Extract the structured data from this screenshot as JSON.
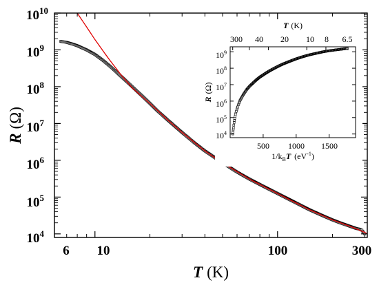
{
  "chart_data": [
    {
      "type": "scatter",
      "xlabel": "T",
      "xunit": "(K)",
      "ylabel": "R",
      "yunit": "(Ω)",
      "xscale": "log",
      "yscale": "log",
      "xlim": [
        6,
        310
      ],
      "ylim": [
        8000,
        10000000000
      ],
      "xticks": [
        {
          "value": 6,
          "label": "6"
        },
        {
          "value": 10,
          "label": "10"
        },
        {
          "value": 100,
          "label": "100"
        },
        {
          "value": 300,
          "label": "300"
        }
      ],
      "yticks": [
        {
          "value": 10000,
          "base": "10",
          "exp": "4"
        },
        {
          "value": 100000,
          "base": "10",
          "exp": "5"
        },
        {
          "value": 1000000,
          "base": "10",
          "exp": "6"
        },
        {
          "value": 10000000,
          "base": "10",
          "exp": "7"
        },
        {
          "value": 100000000,
          "base": "10",
          "exp": "8"
        },
        {
          "value": 1000000000,
          "base": "10",
          "exp": "9"
        },
        {
          "value": 10000000000,
          "base": "10",
          "exp": "10"
        }
      ],
      "series": [
        {
          "kind": "data",
          "marker": "open-square",
          "color": "#000000",
          "points": [
            [
              6.5,
              1700000000.0
            ],
            [
              7,
              1600000000.0
            ],
            [
              7.5,
              1450000000.0
            ],
            [
              8,
              1300000000.0
            ],
            [
              9,
              1000000000.0
            ],
            [
              10,
              750000000.0
            ],
            [
              11,
              530000000.0
            ],
            [
              12,
              370000000.0
            ],
            [
              13,
              260000000.0
            ],
            [
              14,
              185000000.0
            ],
            [
              15,
              135000000.0
            ],
            [
              16,
              100000000.0
            ],
            [
              18,
              58000000.0
            ],
            [
              20,
              35000000.0
            ],
            [
              22,
              22000000.0
            ],
            [
              25,
              12500000.0
            ],
            [
              30,
              5700000.0
            ],
            [
              35,
              3000000.0
            ],
            [
              40,
              1800000.0
            ],
            [
              50,
              850000.0
            ],
            [
              60,
              480000.0
            ],
            [
              70,
              310000.0
            ],
            [
              80,
              220000.0
            ],
            [
              100,
              125000.0
            ],
            [
              120,
              79000.0
            ],
            [
              150,
              45000.0
            ],
            [
              180,
              30000.0
            ],
            [
              200,
              24000.0
            ],
            [
              220,
              20000.0
            ],
            [
              250,
              16000.0
            ],
            [
              270,
              14000.0
            ],
            [
              280,
              13500.0
            ],
            [
              290,
              12500.0
            ],
            [
              300,
              10000.0
            ]
          ]
        },
        {
          "kind": "fit",
          "color": "#e00000",
          "points": [
            [
              8.0,
              10000000000.0
            ],
            [
              9,
              4200000000.0
            ],
            [
              10,
              1900000000.0
            ],
            [
              12,
              540000000.0
            ],
            [
              14,
              200000000.0
            ],
            [
              16,
              93000000.0
            ],
            [
              18,
              55000000.0
            ],
            [
              20,
              35000000.0
            ],
            [
              25,
              12500000.0
            ],
            [
              30,
              5700000.0
            ],
            [
              40,
              1800000.0
            ],
            [
              50,
              850000.0
            ],
            [
              70,
              310000.0
            ],
            [
              100,
              125000.0
            ],
            [
              150,
              45000.0
            ],
            [
              200,
              24000.0
            ],
            [
              250,
              16000.0
            ],
            [
              300,
              11000.0
            ],
            [
              310,
              10000.0
            ]
          ]
        }
      ]
    },
    {
      "type": "scatter",
      "xlabel_base": "1/k",
      "xlabel_sub": "B",
      "xlabel_var": "T",
      "xunit_base": "(eV",
      "xunit_exp": "-1",
      "xunit_close": ")",
      "ylabel": "R",
      "yunit": "(Ω)",
      "top_xlabel": "T",
      "top_xunit": "(K)",
      "xscale": "linear",
      "yscale": "log",
      "xlim": [
        0,
        1900
      ],
      "ylim": [
        6000,
        2000000000
      ],
      "xticks": [
        {
          "value": 500,
          "label": "500"
        },
        {
          "value": 1000,
          "label": "1000"
        },
        {
          "value": 1500,
          "label": "1500"
        }
      ],
      "top_xticks": [
        {
          "value": 300,
          "label": "300"
        },
        {
          "value": 40,
          "label": "40"
        },
        {
          "value": 20,
          "label": "20"
        },
        {
          "value": 10,
          "label": "10"
        },
        {
          "value": 8,
          "label": "8"
        },
        {
          "value": 6.5,
          "label": "6.5"
        }
      ],
      "yticks": [
        {
          "value": 10000,
          "base": "10",
          "exp": "4"
        },
        {
          "value": 100000,
          "base": "10",
          "exp": "5"
        },
        {
          "value": 1000000,
          "base": "10",
          "exp": "6"
        },
        {
          "value": 10000000,
          "base": "10",
          "exp": "7"
        },
        {
          "value": 100000000,
          "base": "10",
          "exp": "8"
        },
        {
          "value": 1000000000,
          "base": "10",
          "exp": "9"
        }
      ],
      "series": [
        {
          "kind": "data",
          "marker": "open-square",
          "color": "#000000",
          "points": [
            [
              40,
              10000.0
            ],
            [
              45,
              16000.0
            ],
            [
              50,
              24000.0
            ],
            [
              60,
              50000.0
            ],
            [
              70,
              90000.0
            ],
            [
              80,
              150000.0
            ],
            [
              100,
              300000.0
            ],
            [
              125,
              600000.0
            ],
            [
              150,
              1100000.0
            ],
            [
              200,
              2500000.0
            ],
            [
              250,
              5000000.0
            ],
            [
              300,
              8500000.0
            ],
            [
              350,
              13000000.0
            ],
            [
              400,
              20000000.0
            ],
            [
              450,
              29000000.0
            ],
            [
              500,
              39000000.0
            ],
            [
              550,
              53000000.0
            ],
            [
              600,
              70000000.0
            ],
            [
              650,
              90000000.0
            ],
            [
              700,
              115000000.0
            ],
            [
              750,
              145000000.0
            ],
            [
              800,
              180000000.0
            ],
            [
              900,
              260000000.0
            ],
            [
              1000,
              370000000.0
            ],
            [
              1100,
              500000000.0
            ],
            [
              1200,
              650000000.0
            ],
            [
              1300,
              800000000.0
            ],
            [
              1400,
              980000000.0
            ],
            [
              1500,
              1150000000.0
            ],
            [
              1600,
              1300000000.0
            ],
            [
              1700,
              1450000000.0
            ],
            [
              1780,
              1600000000.0
            ]
          ]
        }
      ]
    }
  ]
}
